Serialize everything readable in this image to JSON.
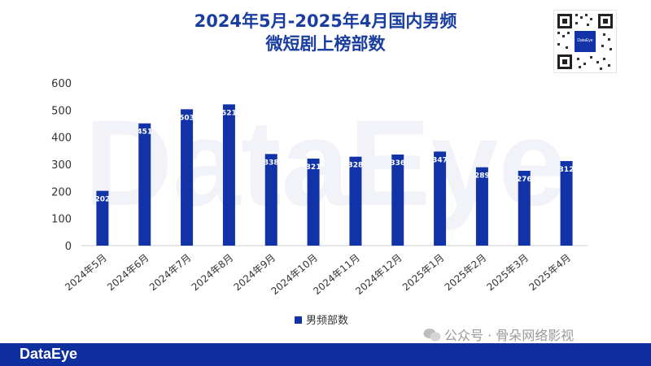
{
  "title_line1": "2024年5月-2025年4月国内男频",
  "title_line2": "微短剧上榜部数",
  "qr_label": "DataEye",
  "footer_logo": "DataEye",
  "wechat_source": "公众号 · 骨朵网络影视",
  "colors": {
    "bar": "#1233a8",
    "title": "#1a3ea0",
    "footer": "#0f2f9e"
  },
  "chart_data": {
    "type": "bar",
    "title": "2024年5月-2025年4月国内男频微短剧上榜部数",
    "categories": [
      "2024年5月",
      "2024年6月",
      "2024年7月",
      "2024年8月",
      "2024年9月",
      "2024年10月",
      "2024年11月",
      "2024年12月",
      "2025年1月",
      "2025年2月",
      "2025年3月",
      "2025年4月"
    ],
    "series": [
      {
        "name": "男频部数",
        "values": [
          202,
          451,
          503,
          521,
          338,
          321,
          328,
          336,
          347,
          289,
          276,
          312
        ]
      }
    ],
    "data_labels": [
      "202",
      "451",
      "503",
      "521",
      "338",
      "321",
      "328",
      "336",
      "347",
      "289",
      "276",
      "312"
    ],
    "yticks": [
      "0",
      "100",
      "200",
      "300",
      "400",
      "500",
      "600"
    ],
    "ylim": [
      0,
      600
    ],
    "grid": false,
    "legend_position": "bottom",
    "watermark": "DataEye"
  }
}
